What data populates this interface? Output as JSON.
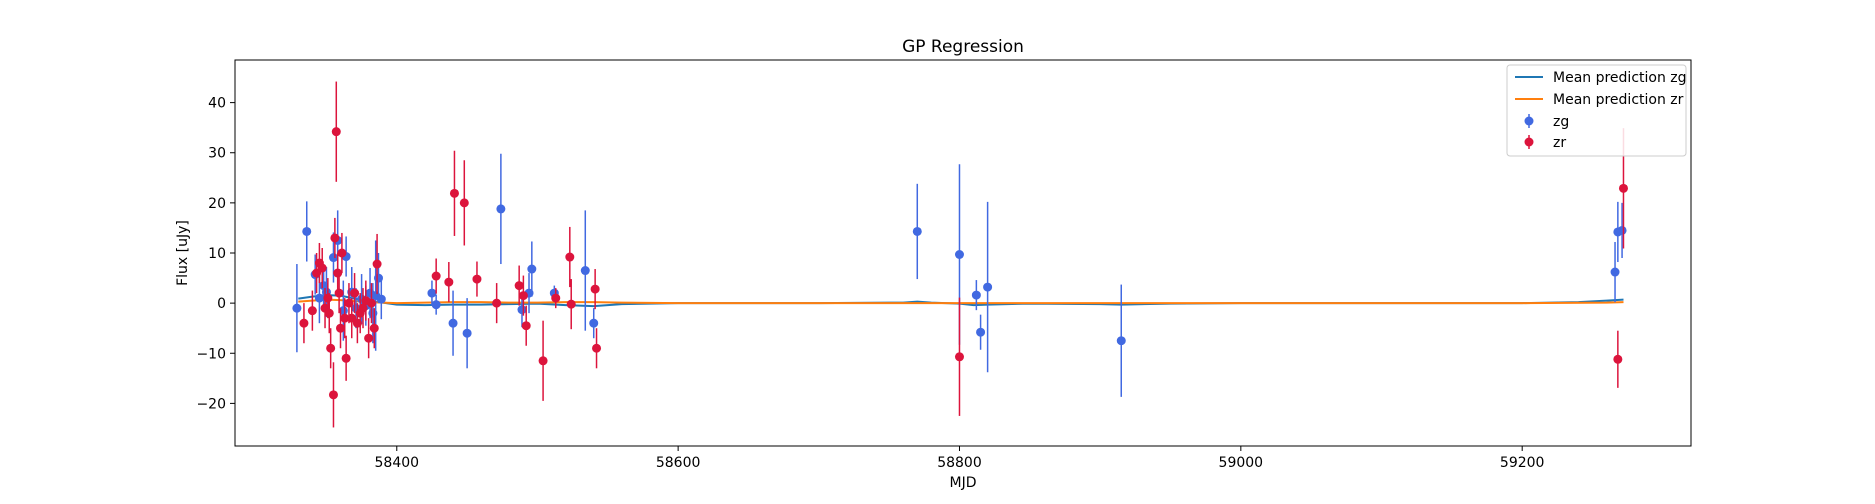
{
  "chart_data": {
    "type": "scatter",
    "title": "GP Regression",
    "xlabel": "MJD",
    "ylabel": "Flux [uJy]",
    "xlim": [
      58285,
      59320
    ],
    "ylim": [
      -28.5,
      48.5
    ],
    "xticks": [
      58400,
      58600,
      58800,
      59000,
      59200
    ],
    "yticks": [
      -20,
      -10,
      0,
      10,
      20,
      30,
      40
    ],
    "grid": false,
    "legend_position": "top-right",
    "legend": [
      {
        "label": "Mean prediction zg",
        "kind": "line",
        "color": "#1f77b4"
      },
      {
        "label": "Mean prediction zr",
        "kind": "line",
        "color": "#ff7f0e"
      },
      {
        "label": "zg",
        "kind": "errorbar",
        "color": "#4169e1"
      },
      {
        "label": "zr",
        "kind": "errorbar",
        "color": "#dc143c"
      }
    ],
    "lines": [
      {
        "name": "Mean prediction zg",
        "color": "#1f77b4",
        "x": [
          58330,
          58340,
          58350,
          58360,
          58370,
          58380,
          58390,
          58400,
          58420,
          58440,
          58460,
          58480,
          58500,
          58520,
          58540,
          58560,
          58600,
          58700,
          58760,
          58770,
          58780,
          58800,
          58810,
          58820,
          58850,
          58900,
          58915,
          58950,
          59000,
          59100,
          59200,
          59240,
          59260,
          59272
        ],
        "y": [
          0.9,
          1.3,
          1.6,
          1.5,
          0.9,
          0.4,
          0.1,
          -0.3,
          -0.4,
          -0.3,
          -0.3,
          -0.2,
          -0.1,
          -0.4,
          -0.6,
          -0.2,
          0,
          0,
          0.1,
          0.3,
          0.1,
          -0.1,
          -0.4,
          -0.3,
          -0.1,
          -0.2,
          -0.3,
          -0.1,
          0,
          0,
          0,
          0.2,
          0.5,
          0.7
        ]
      },
      {
        "name": "Mean prediction zr",
        "color": "#ff7f0e",
        "x": [
          58330,
          58340,
          58350,
          58360,
          58370,
          58380,
          58390,
          58400,
          58420,
          58440,
          58460,
          58480,
          58500,
          58520,
          58540,
          58560,
          58600,
          58700,
          58800,
          58900,
          59000,
          59100,
          59200,
          59260,
          59272
        ],
        "y": [
          0.3,
          0.5,
          0.7,
          0.6,
          0.4,
          0.2,
          0.1,
          0,
          0.1,
          0.2,
          0.2,
          0.1,
          0.1,
          0.2,
          0.2,
          0.1,
          0,
          0,
          0,
          0,
          0,
          0,
          0,
          0.1,
          0.2
        ]
      }
    ],
    "series": [
      {
        "name": "zg",
        "color": "#4169e1",
        "points": [
          {
            "x": 58329,
            "y": -1,
            "err": 8.8
          },
          {
            "x": 58336,
            "y": 14.3,
            "err": 6
          },
          {
            "x": 58342,
            "y": 5.7,
            "err": 4
          },
          {
            "x": 58345,
            "y": 1,
            "err": 5
          },
          {
            "x": 58348,
            "y": 3.5,
            "err": 4
          },
          {
            "x": 58350,
            "y": 2.2,
            "err": 5
          },
          {
            "x": 58355,
            "y": 9.1,
            "err": 5
          },
          {
            "x": 58358,
            "y": 12.5,
            "err": 6
          },
          {
            "x": 58362,
            "y": -1.5,
            "err": 6
          },
          {
            "x": 58364,
            "y": 9.3,
            "err": 4
          },
          {
            "x": 58368,
            "y": 2.2,
            "err": 5
          },
          {
            "x": 58371,
            "y": -1,
            "err": 4
          },
          {
            "x": 58375,
            "y": 0.8,
            "err": 5
          },
          {
            "x": 58378,
            "y": -0.5,
            "err": 4
          },
          {
            "x": 58381,
            "y": 2,
            "err": 5
          },
          {
            "x": 58383,
            "y": -2,
            "err": 6
          },
          {
            "x": 58385,
            "y": 1.5,
            "err": 11
          },
          {
            "x": 58387,
            "y": 5,
            "err": 5
          },
          {
            "x": 58389,
            "y": 0.8,
            "err": 4
          },
          {
            "x": 58425,
            "y": 2,
            "err": 2.5
          },
          {
            "x": 58428,
            "y": -0.3,
            "err": 2
          },
          {
            "x": 58440,
            "y": -4,
            "err": 6.5
          },
          {
            "x": 58450,
            "y": -6,
            "err": 7
          },
          {
            "x": 58474,
            "y": 18.8,
            "err": 11
          },
          {
            "x": 58489,
            "y": -1.3,
            "err": 3.5
          },
          {
            "x": 58494,
            "y": 2,
            "err": 4
          },
          {
            "x": 58496,
            "y": 6.8,
            "err": 5.5
          },
          {
            "x": 58512,
            "y": 2,
            "err": 1.5
          },
          {
            "x": 58534,
            "y": 6.5,
            "err": 12
          },
          {
            "x": 58540,
            "y": -4,
            "err": 3
          },
          {
            "x": 58770,
            "y": 14.3,
            "err": 9.5
          },
          {
            "x": 58800,
            "y": 9.7,
            "err": 18
          },
          {
            "x": 58812,
            "y": 1.6,
            "err": 3
          },
          {
            "x": 58815,
            "y": -5.8,
            "err": 3.5
          },
          {
            "x": 58820,
            "y": 3.2,
            "err": 17
          },
          {
            "x": 58915,
            "y": -7.5,
            "err": 11.2
          },
          {
            "x": 59266,
            "y": 6.2,
            "err": 6
          },
          {
            "x": 59268,
            "y": 14.2,
            "err": 6
          },
          {
            "x": 59271,
            "y": 14.5,
            "err": 5.5
          }
        ]
      },
      {
        "name": "zr",
        "color": "#dc143c",
        "points": [
          {
            "x": 58334,
            "y": -4,
            "err": 4
          },
          {
            "x": 58340,
            "y": -1.5,
            "err": 4
          },
          {
            "x": 58343,
            "y": 6,
            "err": 4
          },
          {
            "x": 58345,
            "y": 8,
            "err": 4
          },
          {
            "x": 58347,
            "y": 7,
            "err": 4
          },
          {
            "x": 58349,
            "y": -1,
            "err": 4
          },
          {
            "x": 58351,
            "y": 1,
            "err": 4
          },
          {
            "x": 58352,
            "y": -2,
            "err": 4
          },
          {
            "x": 58353,
            "y": -9,
            "err": 4
          },
          {
            "x": 58355,
            "y": -18.3,
            "err": 6.5
          },
          {
            "x": 58356,
            "y": 13,
            "err": 4
          },
          {
            "x": 58357,
            "y": 34.2,
            "err": 10
          },
          {
            "x": 58358,
            "y": 6,
            "err": 4
          },
          {
            "x": 58359,
            "y": 2,
            "err": 4
          },
          {
            "x": 58360,
            "y": -5,
            "err": 4
          },
          {
            "x": 58361,
            "y": 10,
            "err": 4
          },
          {
            "x": 58363,
            "y": -3,
            "err": 4
          },
          {
            "x": 58364,
            "y": -11,
            "err": 4.5
          },
          {
            "x": 58366,
            "y": 0,
            "err": 4
          },
          {
            "x": 58368,
            "y": -3,
            "err": 4
          },
          {
            "x": 58370,
            "y": 2,
            "err": 4
          },
          {
            "x": 58372,
            "y": -4,
            "err": 4
          },
          {
            "x": 58374,
            "y": -2,
            "err": 4
          },
          {
            "x": 58376,
            "y": -1,
            "err": 4
          },
          {
            "x": 58378,
            "y": 0.5,
            "err": 4
          },
          {
            "x": 58380,
            "y": -7,
            "err": 4
          },
          {
            "x": 58382,
            "y": 0,
            "err": 4
          },
          {
            "x": 58384,
            "y": -5,
            "err": 4
          },
          {
            "x": 58386,
            "y": 7.8,
            "err": 6
          },
          {
            "x": 58428,
            "y": 5.4,
            "err": 3.5
          },
          {
            "x": 58437,
            "y": 4.2,
            "err": 4
          },
          {
            "x": 58441,
            "y": 21.9,
            "err": 8.5
          },
          {
            "x": 58448,
            "y": 20,
            "err": 8.5
          },
          {
            "x": 58457,
            "y": 4.8,
            "err": 3.5
          },
          {
            "x": 58471,
            "y": 0,
            "err": 4
          },
          {
            "x": 58487,
            "y": 3.5,
            "err": 4
          },
          {
            "x": 58490,
            "y": 1.5,
            "err": 4
          },
          {
            "x": 58492,
            "y": -4.5,
            "err": 4
          },
          {
            "x": 58504,
            "y": -11.5,
            "err": 8
          },
          {
            "x": 58513,
            "y": 1,
            "err": 2
          },
          {
            "x": 58523,
            "y": 9.2,
            "err": 6
          },
          {
            "x": 58524,
            "y": -0.2,
            "err": 5
          },
          {
            "x": 58541,
            "y": 2.8,
            "err": 4
          },
          {
            "x": 58542,
            "y": -9,
            "err": 4
          },
          {
            "x": 58800,
            "y": -10.7,
            "err": 11.8
          },
          {
            "x": 59268,
            "y": -11.2,
            "err": 5.7
          },
          {
            "x": 59272,
            "y": 22.9,
            "err": 12
          }
        ]
      }
    ]
  }
}
